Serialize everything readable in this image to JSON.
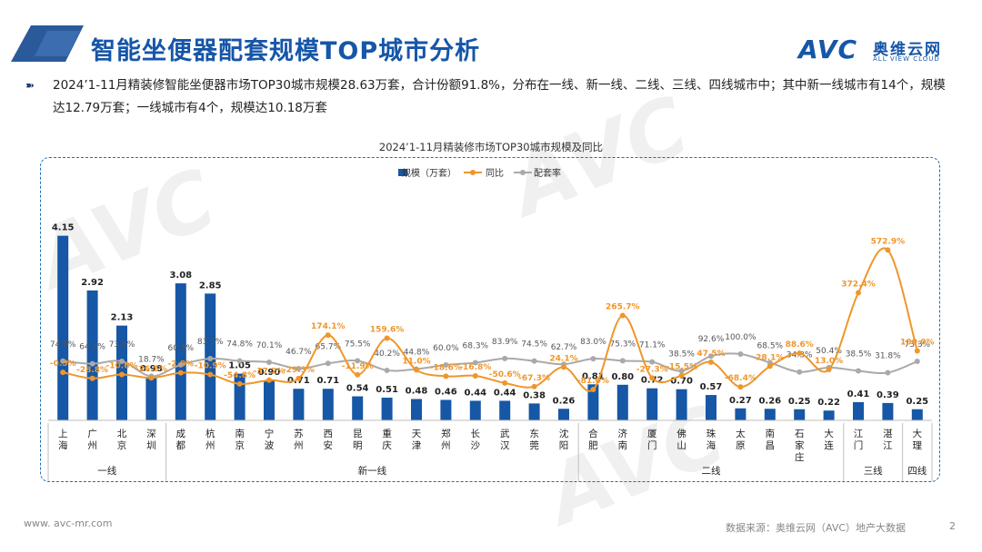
{
  "header": {
    "title": "智能坐便器配套规模TOP城市分析",
    "logo_mark": "AVC",
    "logo_cn": "奥维云网",
    "logo_en": "ALL VIEW CLOUD",
    "brand_color": "#1656a8"
  },
  "bullet": {
    "text": "2024’1-11月精装修智能坐便器市场TOP30城市规模28.63万套，合计份额91.8%，分布在一线、新一线、二线、三线、四线城市中；其中新一线城市有14个，规模达12.79万套；一线城市有4个，规模达10.18万套"
  },
  "chart_data": {
    "type": "bar",
    "title": "2024’1-11月精装修市场TOP30城市规模及同比",
    "legend": [
      "规模（万套）",
      "同比",
      "配套率"
    ],
    "legend_position": "top-center",
    "colors": {
      "bar": "#1657a6",
      "yoy": "#f0962a",
      "rate": "#a9a9a9"
    },
    "categories": [
      "上海",
      "广州",
      "北京",
      "深圳",
      "成都",
      "杭州",
      "南京",
      "宁波",
      "苏州",
      "西安",
      "昆明",
      "重庆",
      "天津",
      "郑州",
      "长沙",
      "武汉",
      "东莞",
      "沈阳",
      "合肥",
      "济南",
      "厦门",
      "佛山",
      "珠海",
      "太原",
      "南昌",
      "石家庄",
      "大连",
      "江门",
      "湛江",
      "大理"
    ],
    "series": [
      {
        "name": "规模（万套）",
        "type": "bar",
        "values": [
          4.15,
          2.92,
          2.13,
          0.98,
          3.08,
          2.85,
          1.05,
          0.9,
          0.71,
          0.71,
          0.54,
          0.51,
          0.48,
          0.46,
          0.44,
          0.44,
          0.38,
          0.26,
          0.81,
          0.8,
          0.72,
          0.7,
          0.57,
          0.27,
          0.26,
          0.25,
          0.22,
          0.41,
          0.39,
          0.25
        ],
        "labels": [
          "4.15",
          "2.92",
          "2.13",
          "0.98",
          "3.08",
          "2.85",
          "1.05",
          "0.90",
          "0.71",
          "0.71",
          "0.54",
          "0.51",
          "0.48",
          "0.46",
          "0.44",
          "0.44",
          "0.38",
          "0.26",
          "0.81",
          "0.80",
          "0.72",
          "0.70",
          "0.57",
          "0.27",
          "0.26",
          "0.25",
          "0.22",
          "0.41",
          "0.39",
          "0.25"
        ]
      },
      {
        "name": "同比",
        "type": "line",
        "values": [
          -0.5,
          -28.8,
          -10.6,
          -26.5,
          -2.8,
          -10.9,
          -54.8,
          -37.2,
          -29.3,
          174.1,
          -11.9,
          159.6,
          11.0,
          -18.6,
          -16.8,
          -50.6,
          -67.3,
          24.1,
          -81.0,
          265.7,
          -27.3,
          -15.5,
          47.5,
          -68.4,
          28.1,
          88.6,
          13.0,
          372.4,
          572.9,
          100.0
        ],
        "labels": [
          "-0.5%",
          "-28.8%",
          "-10.6%",
          "-26.5%",
          "-2.8%",
          "-10.9%",
          "-54.8%",
          "-37.2%",
          "-29.3%",
          "174.1%",
          "-11.9%",
          "159.6%",
          "11.0%",
          "-18.6%",
          "-16.8%",
          "-50.6%",
          "-67.3%",
          "24.1%",
          "-81.0%",
          "265.7%",
          "-27.3%",
          "-15.5%",
          "47.5%",
          "-68.4%",
          "28.1%",
          "88.6%",
          "13.0%",
          "372.4%",
          "572.9%",
          "100.0%"
        ]
      },
      {
        "name": "配套率",
        "type": "line",
        "values": [
          74.0,
          64.5,
          73.5,
          18.7,
          60.5,
          83.5,
          74.8,
          70.1,
          46.7,
          65.7,
          75.5,
          40.2,
          44.8,
          60.0,
          68.3,
          83.9,
          74.5,
          62.7,
          83.0,
          75.3,
          71.1,
          38.5,
          92.6,
          100.0,
          68.5,
          34.3,
          50.4,
          38.5,
          31.8,
          73.3
        ],
        "labels": [
          "74.0%",
          "64.5%",
          "73.5%",
          "18.7%",
          "60.5%",
          "83.5%",
          "74.8%",
          "70.1%",
          "46.7%",
          "65.7%",
          "75.5%",
          "40.2%",
          "44.8%",
          "60.0%",
          "68.3%",
          "83.9%",
          "74.5%",
          "62.7%",
          "83.0%",
          "75.3%",
          "71.1%",
          "38.5%",
          "92.6%",
          "100.0%",
          "68.5%",
          "34.3%",
          "50.4%",
          "38.5%",
          "31.8%",
          "73.3%"
        ]
      }
    ],
    "groups": [
      {
        "name": "一线",
        "start": 0,
        "end": 3
      },
      {
        "name": "新一线",
        "start": 4,
        "end": 17
      },
      {
        "name": "二线",
        "start": 18,
        "end": 26
      },
      {
        "name": "三线",
        "start": 27,
        "end": 28
      },
      {
        "name": "四线",
        "start": 29,
        "end": 29
      }
    ]
  },
  "footer": {
    "website": "www. avc-mr.com",
    "source": "数据来源：奥维云网（AVC）地产大数据",
    "page": "2"
  }
}
